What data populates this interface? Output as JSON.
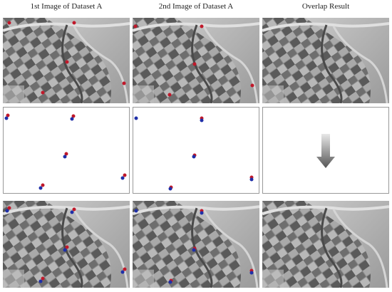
{
  "columns": [
    {
      "title": "1st Image of Dataset A"
    },
    {
      "title": "2nd Image of Dataset A"
    },
    {
      "title": "Overlap Result"
    }
  ]
}
